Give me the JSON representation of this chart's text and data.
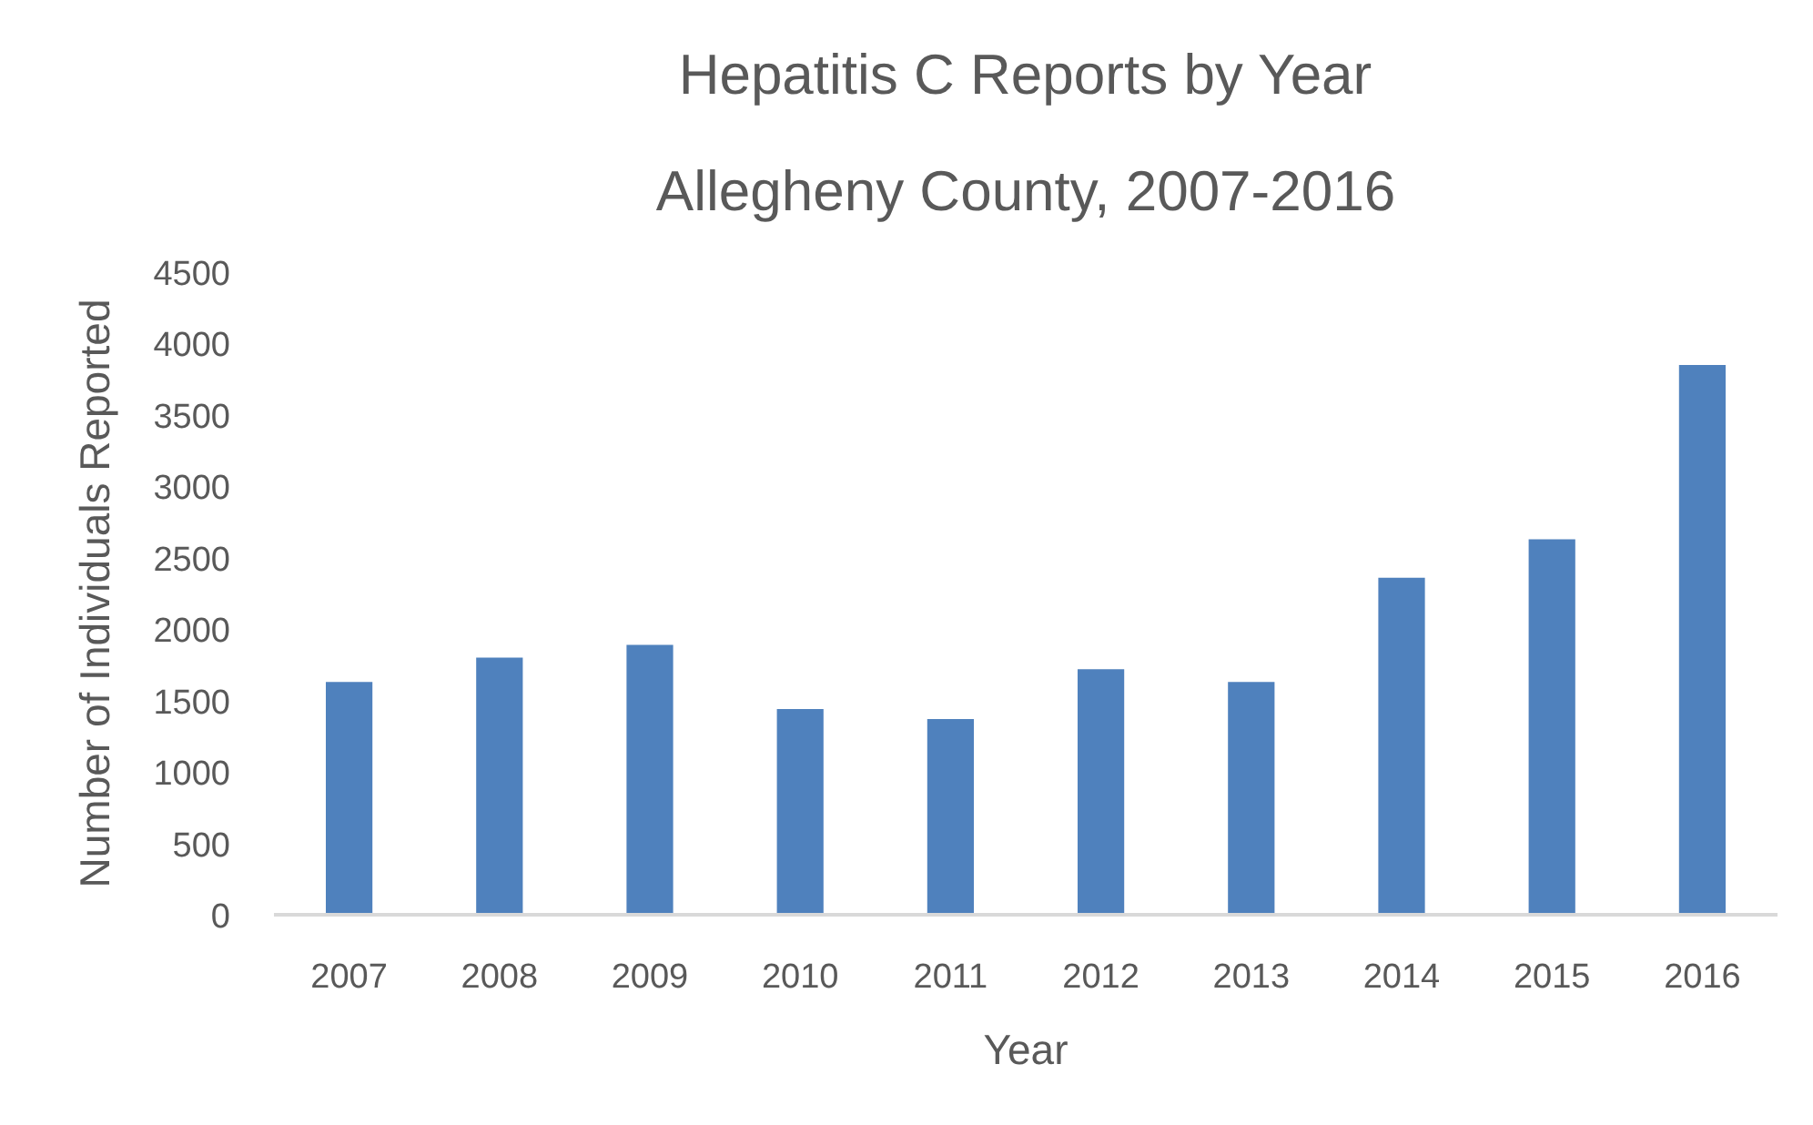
{
  "chart_data": {
    "type": "bar",
    "title": "Hepatitis C Reports by Year",
    "subtitle": "Allegheny County, 2007-2016",
    "xlabel": "Year",
    "ylabel": "Number of Individuals Reported",
    "categories": [
      "2007",
      "2008",
      "2009",
      "2010",
      "2011",
      "2012",
      "2013",
      "2014",
      "2015",
      "2016"
    ],
    "values": [
      1630,
      1800,
      1890,
      1440,
      1370,
      1720,
      1630,
      2360,
      2630,
      3850
    ],
    "color": "#4f81bd",
    "ylim": [
      0,
      4500
    ],
    "yticks": [
      0,
      500,
      1000,
      1500,
      2000,
      2500,
      3000,
      3500,
      4000,
      4500
    ],
    "grid": false
  }
}
